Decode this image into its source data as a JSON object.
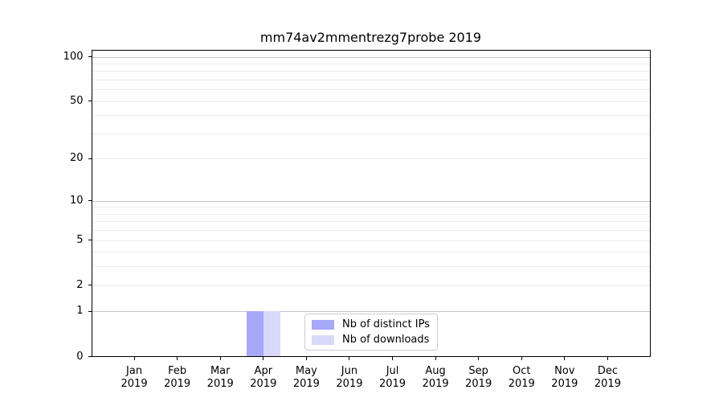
{
  "chart_data": {
    "type": "bar",
    "title": "mm74av2mmentrezg7probe 2019",
    "x_categories": [
      "Jan",
      "Feb",
      "Mar",
      "Apr",
      "May",
      "Jun",
      "Jul",
      "Aug",
      "Sep",
      "Oct",
      "Nov",
      "Dec"
    ],
    "x_sub_label": "2019",
    "series": [
      {
        "name": "Nb of distinct IPs",
        "color": "#a8a8f8",
        "values": [
          0,
          0,
          0,
          1,
          0,
          0,
          0,
          0,
          0,
          0,
          0,
          0
        ]
      },
      {
        "name": "Nb of downloads",
        "color": "#d8d8f8",
        "values": [
          0,
          0,
          0,
          1,
          0,
          0,
          0,
          0,
          0,
          0,
          0,
          0
        ]
      }
    ],
    "yscale": "log1p",
    "ylim": [
      0,
      112
    ],
    "ytick_values": [
      0,
      1,
      2,
      5,
      10,
      20,
      50,
      100
    ],
    "major_gridline_values": [
      1,
      10,
      100
    ],
    "minor_gridline_values": [
      2,
      3,
      4,
      5,
      6,
      7,
      8,
      9,
      20,
      30,
      40,
      50,
      60,
      70,
      80,
      90
    ],
    "grid": "horizontal",
    "legend": {
      "position": "lower center",
      "items": [
        "Nb of distinct IPs",
        "Nb of downloads"
      ]
    },
    "colors": {
      "major_grid": "#c6c6c6",
      "minor_grid": "#ececec",
      "spine": "#000000",
      "text": "#000000",
      "background": "#ffffff"
    }
  }
}
